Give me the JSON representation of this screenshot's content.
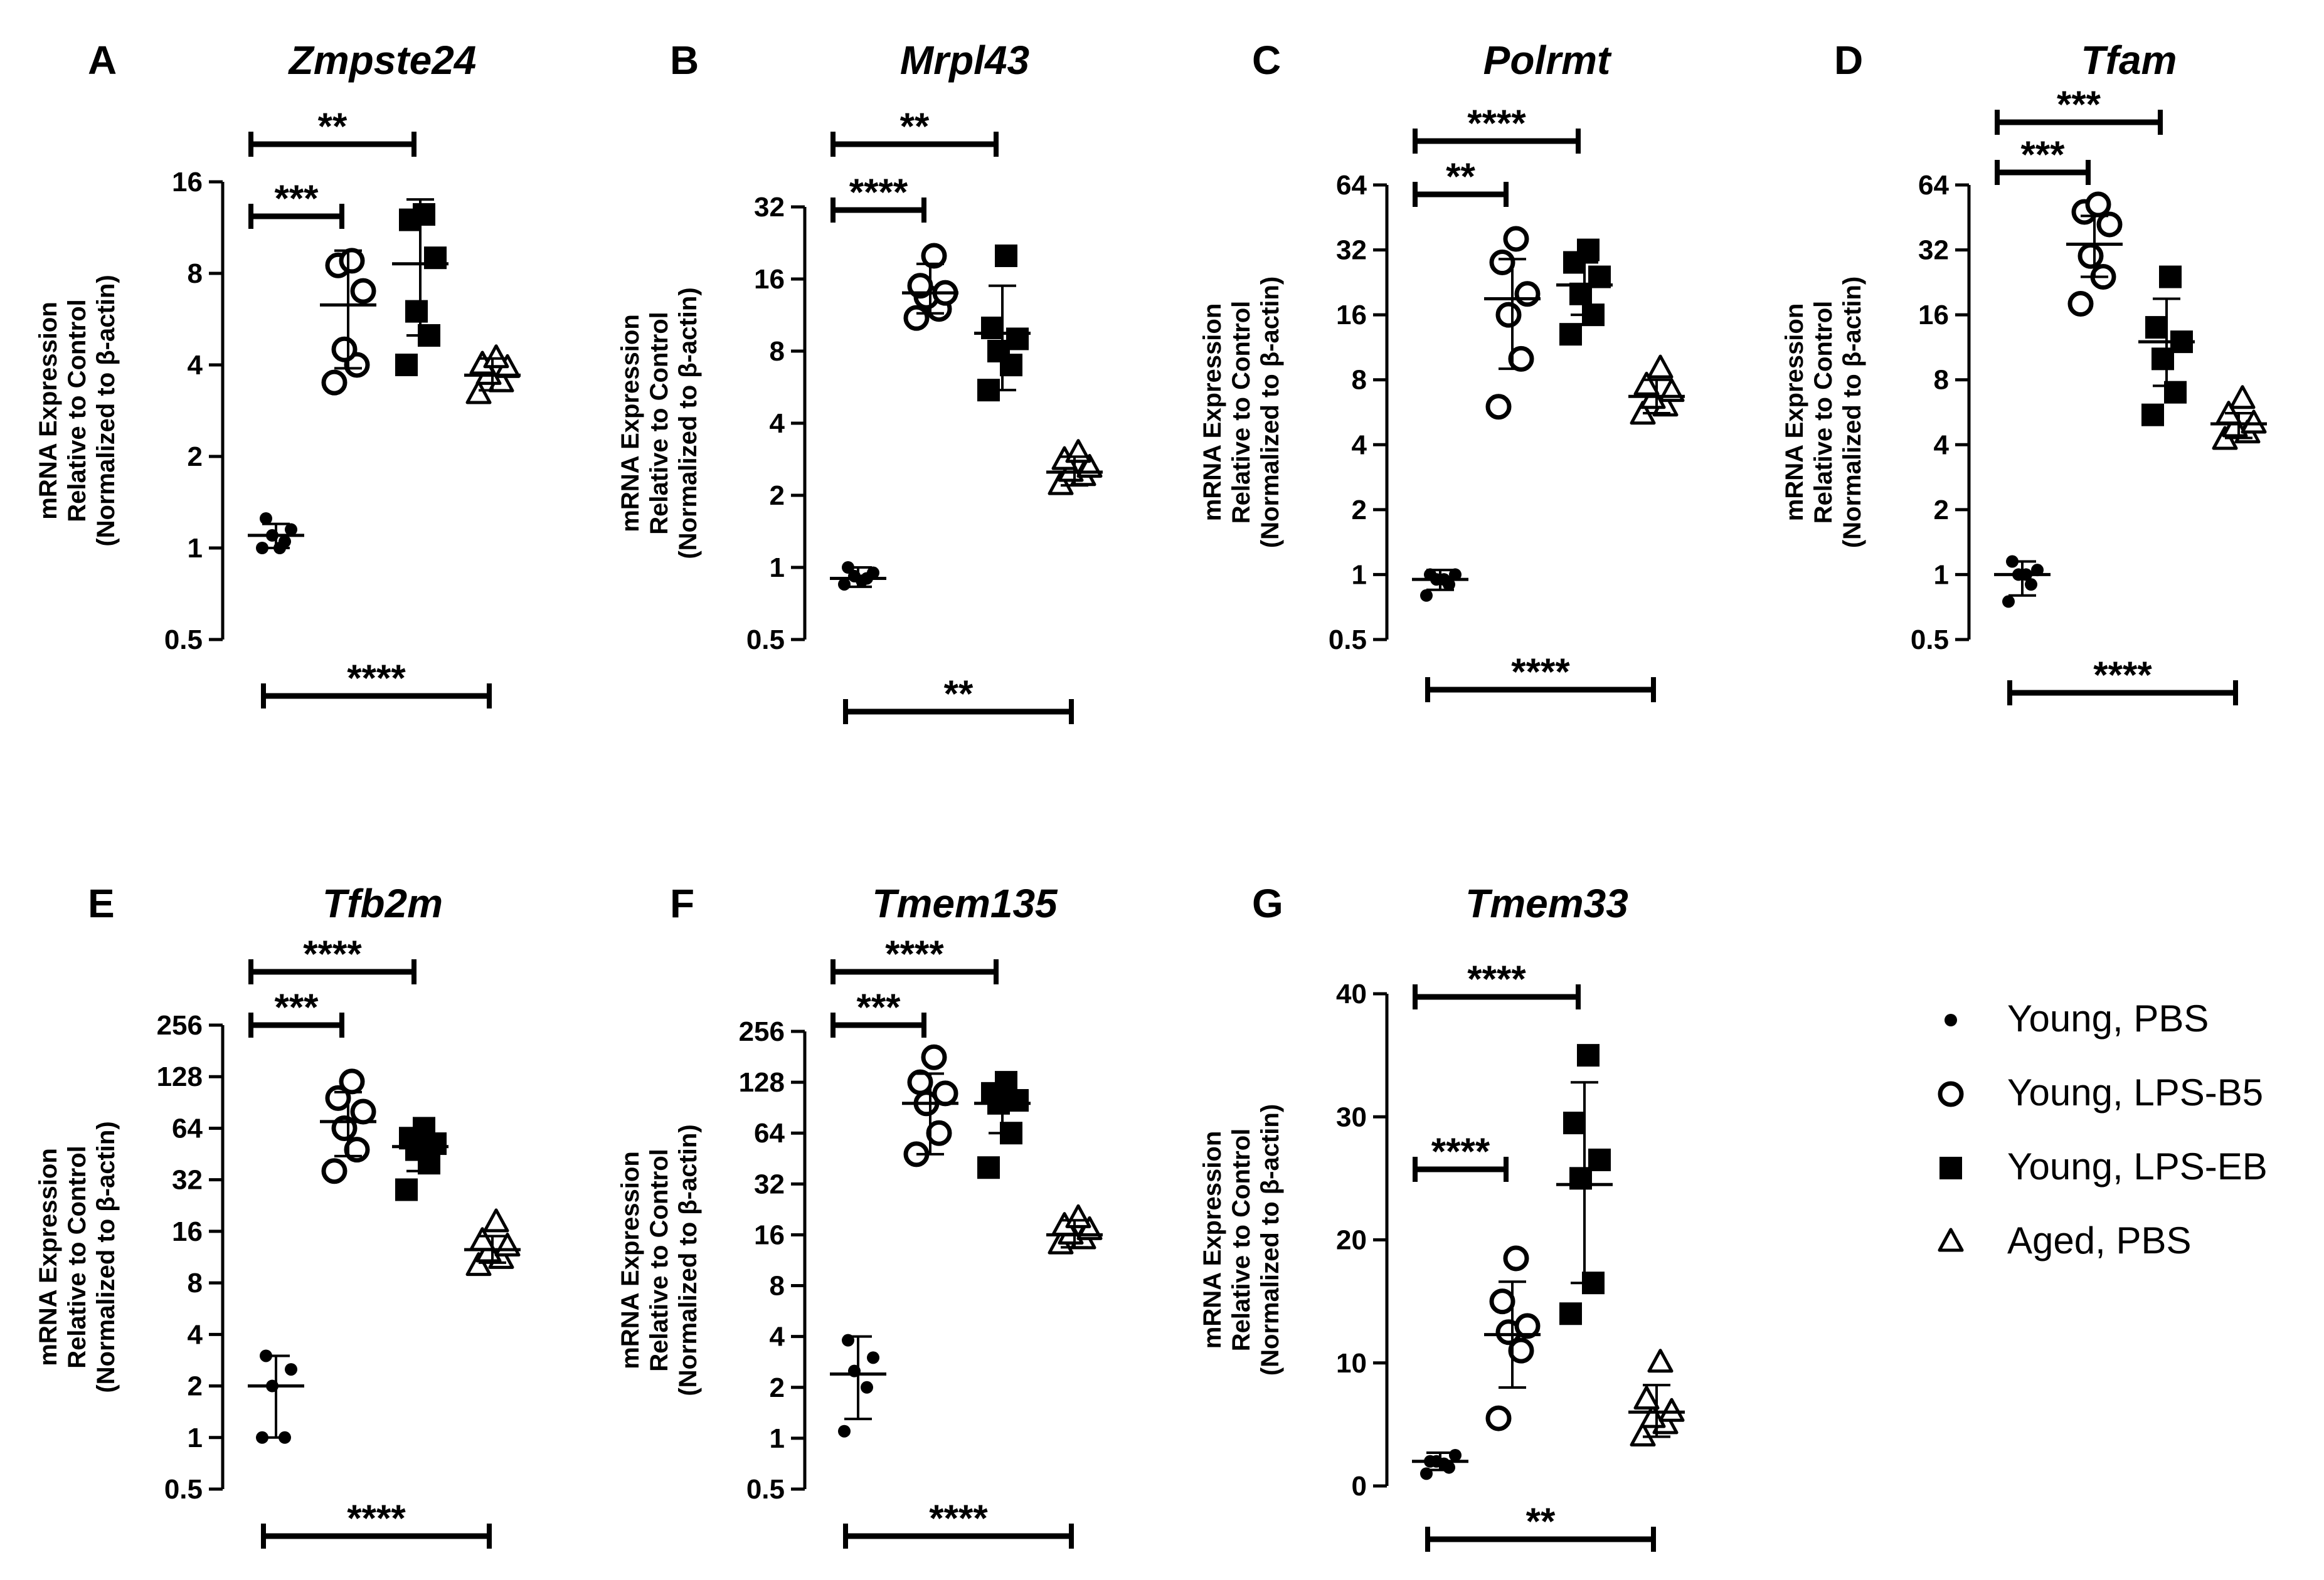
{
  "legend": [
    {
      "label": "Young, PBS",
      "marker": "dot"
    },
    {
      "label": "Young, LPS-B5",
      "marker": "open-circle"
    },
    {
      "label": "Young, LPS-EB",
      "marker": "filled-square"
    },
    {
      "label": "Aged, PBS",
      "marker": "open-triangle"
    }
  ],
  "chart_data": [
    {
      "type": "scatter",
      "letter": "A",
      "title": "Zmpste24",
      "scale": "log2",
      "ylabel": [
        "mRNA Expression",
        "Relative to Control",
        "(Normalized to β-actin)"
      ],
      "ylim": [
        0.5,
        16
      ],
      "yticks": [
        "0.5",
        "1",
        "2",
        "4",
        "8",
        "16"
      ],
      "groups": [
        {
          "name": "Young, PBS",
          "points": [
            1.0,
            1.05,
            1.1,
            1.15,
            1.25,
            1.0
          ],
          "mean": 1.1,
          "err": [
            1.0,
            1.2
          ]
        },
        {
          "name": "Young, LPS-B5",
          "points": [
            3.5,
            4.0,
            4.5,
            7.0,
            8.5,
            8.8
          ],
          "mean": 6.3,
          "err": [
            3.9,
            9.5
          ]
        },
        {
          "name": "Young, LPS-EB",
          "points": [
            4.0,
            5.0,
            6.0,
            9.0,
            12.0,
            12.5
          ],
          "mean": 8.6,
          "err": [
            5.0,
            14.0
          ]
        },
        {
          "name": "Aged, PBS",
          "points": [
            3.2,
            3.5,
            3.7,
            3.9,
            4.0,
            4.2
          ],
          "mean": 3.7,
          "err": [
            3.3,
            4.2
          ]
        }
      ],
      "sig_top": [
        {
          "from": 0,
          "to": 1,
          "label": "***"
        },
        {
          "from": 0,
          "to": 2,
          "label": "**"
        }
      ],
      "sig_bottom": {
        "from": 0,
        "to": 3,
        "label": "****"
      }
    },
    {
      "type": "scatter",
      "letter": "B",
      "title": "Mrpl43",
      "scale": "log2",
      "ylabel": [
        "mRNA Expression",
        "Relative to Control",
        "(Normalized to β-actin)"
      ],
      "ylim": [
        0.5,
        32
      ],
      "yticks": [
        "0.5",
        "1",
        "2",
        "4",
        "8",
        "16",
        "32"
      ],
      "groups": [
        {
          "name": "Young, PBS",
          "points": [
            0.85,
            0.9,
            0.92,
            0.95,
            1.0,
            0.88
          ],
          "mean": 0.9,
          "err": [
            0.83,
            1.0
          ]
        },
        {
          "name": "Young, LPS-B5",
          "points": [
            11.0,
            12.0,
            13.5,
            14.0,
            15.0,
            20.0
          ],
          "mean": 14.0,
          "err": [
            11.5,
            18.5
          ]
        },
        {
          "name": "Young, LPS-EB",
          "points": [
            5.5,
            7.0,
            8.0,
            9.0,
            10.0,
            20.0
          ],
          "mean": 9.5,
          "err": [
            5.5,
            15.0
          ]
        },
        {
          "name": "Aged, PBS",
          "points": [
            2.2,
            2.4,
            2.5,
            2.6,
            2.8,
            3.0
          ],
          "mean": 2.5,
          "err": [
            2.2,
            2.9
          ]
        }
      ],
      "sig_top": [
        {
          "from": 0,
          "to": 1,
          "label": "****"
        },
        {
          "from": 0,
          "to": 2,
          "label": "**"
        }
      ],
      "sig_bottom": {
        "from": 0,
        "to": 3,
        "label": "**"
      }
    },
    {
      "type": "scatter",
      "letter": "C",
      "title": "Polrmt",
      "scale": "log2",
      "ylabel": [
        "mRNA Expression",
        "Relative to Control",
        "(Normalized to β-actin)"
      ],
      "ylim": [
        0.5,
        64
      ],
      "yticks": [
        "0.5",
        "1",
        "2",
        "4",
        "8",
        "16",
        "32",
        "64"
      ],
      "groups": [
        {
          "name": "Young, PBS",
          "points": [
            0.8,
            0.9,
            0.95,
            1.0,
            1.0,
            0.95
          ],
          "mean": 0.95,
          "err": [
            0.85,
            1.05
          ]
        },
        {
          "name": "Young, LPS-B5",
          "points": [
            6.0,
            10.0,
            16.0,
            20.0,
            28.0,
            36.0
          ],
          "mean": 19.0,
          "err": [
            9.0,
            29.0
          ]
        },
        {
          "name": "Young, LPS-EB",
          "points": [
            13.0,
            16.0,
            20.0,
            24.0,
            28.0,
            32.0
          ],
          "mean": 22.0,
          "err": [
            16.0,
            28.0
          ]
        },
        {
          "name": "Aged, PBS",
          "points": [
            5.5,
            6.0,
            6.5,
            7.0,
            7.5,
            9.0
          ],
          "mean": 6.7,
          "err": [
            5.6,
            8.0
          ]
        }
      ],
      "sig_top": [
        {
          "from": 0,
          "to": 1,
          "label": "**"
        },
        {
          "from": 0,
          "to": 2,
          "label": "****"
        }
      ],
      "sig_bottom": {
        "from": 0,
        "to": 3,
        "label": "****"
      }
    },
    {
      "type": "scatter",
      "letter": "D",
      "title": "Tfam",
      "scale": "log2",
      "ylabel": [
        "mRNA Expression",
        "Relative to Control",
        "(Normalized to β-actin)"
      ],
      "ylim": [
        0.5,
        64
      ],
      "yticks": [
        "0.5",
        "1",
        "2",
        "4",
        "8",
        "16",
        "32",
        "64"
      ],
      "groups": [
        {
          "name": "Young, PBS",
          "points": [
            0.75,
            0.9,
            1.0,
            1.05,
            1.15,
            1.0
          ],
          "mean": 1.0,
          "err": [
            0.8,
            1.15
          ]
        },
        {
          "name": "Young, LPS-B5",
          "points": [
            18.0,
            24.0,
            30.0,
            42.0,
            48.0,
            52.0
          ],
          "mean": 34.0,
          "err": [
            24.0,
            46.0
          ]
        },
        {
          "name": "Young, LPS-EB",
          "points": [
            5.5,
            7.0,
            10.0,
            12.0,
            14.0,
            24.0
          ],
          "mean": 12.0,
          "err": [
            7.5,
            19.0
          ]
        },
        {
          "name": "Aged, PBS",
          "points": [
            4.2,
            4.5,
            4.8,
            5.0,
            5.5,
            6.5
          ],
          "mean": 5.0,
          "err": [
            4.3,
            5.6
          ]
        }
      ],
      "sig_top": [
        {
          "from": 0,
          "to": 1,
          "label": "***"
        },
        {
          "from": 0,
          "to": 2,
          "label": "***"
        }
      ],
      "sig_bottom": {
        "from": 0,
        "to": 3,
        "label": "****"
      }
    },
    {
      "type": "scatter",
      "letter": "E",
      "title": "Tfb2m",
      "scale": "log2",
      "ylabel": [
        "mRNA Expression",
        "Relative to Control",
        "(Normalized to β-actin)"
      ],
      "ylim": [
        0.5,
        256
      ],
      "yticks": [
        "0.5",
        "1",
        "2",
        "4",
        "8",
        "16",
        "32",
        "64",
        "128",
        "256"
      ],
      "groups": [
        {
          "name": "Young, PBS",
          "points": [
            1.0,
            1.0,
            2.0,
            2.5,
            3.0
          ],
          "mean": 2.0,
          "err": [
            1.0,
            3.0
          ]
        },
        {
          "name": "Young, LPS-B5",
          "points": [
            36.0,
            48.0,
            64.0,
            80.0,
            96.0,
            120.0
          ],
          "mean": 70.0,
          "err": [
            44.0,
            104.0
          ]
        },
        {
          "name": "Young, LPS-EB",
          "points": [
            28.0,
            40.0,
            48.0,
            52.0,
            56.0,
            64.0
          ],
          "mean": 50.0,
          "err": [
            36.0,
            64.0
          ]
        },
        {
          "name": "Aged, PBS",
          "points": [
            10.0,
            11.0,
            12.0,
            13.0,
            14.0,
            18.0
          ],
          "mean": 12.5,
          "err": [
            10.5,
            15.0
          ]
        }
      ],
      "sig_top": [
        {
          "from": 0,
          "to": 1,
          "label": "***"
        },
        {
          "from": 0,
          "to": 2,
          "label": "****"
        }
      ],
      "sig_bottom": {
        "from": 0,
        "to": 3,
        "label": "****"
      }
    },
    {
      "type": "scatter",
      "letter": "F",
      "title": "Tmem135",
      "scale": "log2",
      "ylabel": [
        "mRNA Expression",
        "Relative to Control",
        "(Normalized to β-actin)"
      ],
      "ylim": [
        0.5,
        256
      ],
      "yticks": [
        "0.5",
        "1",
        "2",
        "4",
        "8",
        "16",
        "32",
        "64",
        "128",
        "256"
      ],
      "groups": [
        {
          "name": "Young, PBS",
          "points": [
            1.1,
            2.0,
            2.5,
            3.0,
            3.8
          ],
          "mean": 2.4,
          "err": [
            1.3,
            4.0
          ]
        },
        {
          "name": "Young, LPS-B5",
          "points": [
            48.0,
            64.0,
            96.0,
            110.0,
            128.0,
            180.0
          ],
          "mean": 96.0,
          "err": [
            48.0,
            144.0
          ]
        },
        {
          "name": "Young, LPS-EB",
          "points": [
            40.0,
            64.0,
            96.0,
            100.0,
            110.0,
            128.0
          ],
          "mean": 96.0,
          "err": [
            64.0,
            120.0
          ]
        },
        {
          "name": "Aged, PBS",
          "points": [
            14.0,
            15.0,
            16.0,
            17.0,
            18.0,
            20.0
          ],
          "mean": 16.0,
          "err": [
            13.5,
            19.5
          ]
        }
      ],
      "sig_top": [
        {
          "from": 0,
          "to": 1,
          "label": "***"
        },
        {
          "from": 0,
          "to": 2,
          "label": "****"
        }
      ],
      "sig_bottom": {
        "from": 0,
        "to": 3,
        "label": "****"
      }
    },
    {
      "type": "scatter",
      "letter": "G",
      "title": "Tmem33",
      "scale": "linear",
      "ylabel": [
        "mRNA Expression",
        "Relative to Control",
        "(Normalized to β-actin)"
      ],
      "ylim": [
        0,
        40
      ],
      "yticks": [
        "0",
        "10",
        "20",
        "30",
        "40"
      ],
      "groups": [
        {
          "name": "Young, PBS",
          "points": [
            1.0,
            1.5,
            2.0,
            2.5,
            2.0,
            1.8
          ],
          "mean": 2.0,
          "err": [
            1.3,
            2.7
          ]
        },
        {
          "name": "Young, LPS-B5",
          "points": [
            5.5,
            11.0,
            12.5,
            13.0,
            15.0,
            18.5
          ],
          "mean": 12.3,
          "err": [
            8.0,
            16.6
          ]
        },
        {
          "name": "Young, LPS-EB",
          "points": [
            14.0,
            16.5,
            25.0,
            26.5,
            29.5,
            35.0
          ],
          "mean": 24.5,
          "err": [
            16.5,
            32.8
          ]
        },
        {
          "name": "Aged, PBS",
          "points": [
            4.0,
            5.0,
            5.5,
            6.0,
            7.0,
            10.0
          ],
          "mean": 6.0,
          "err": [
            4.0,
            8.2
          ]
        }
      ],
      "sig_top": [
        {
          "from": 0,
          "to": 1,
          "label": "****"
        },
        {
          "from": 0,
          "to": 2,
          "label": "****"
        }
      ],
      "sig_bottom": {
        "from": 0,
        "to": 3,
        "label": "**"
      }
    }
  ]
}
